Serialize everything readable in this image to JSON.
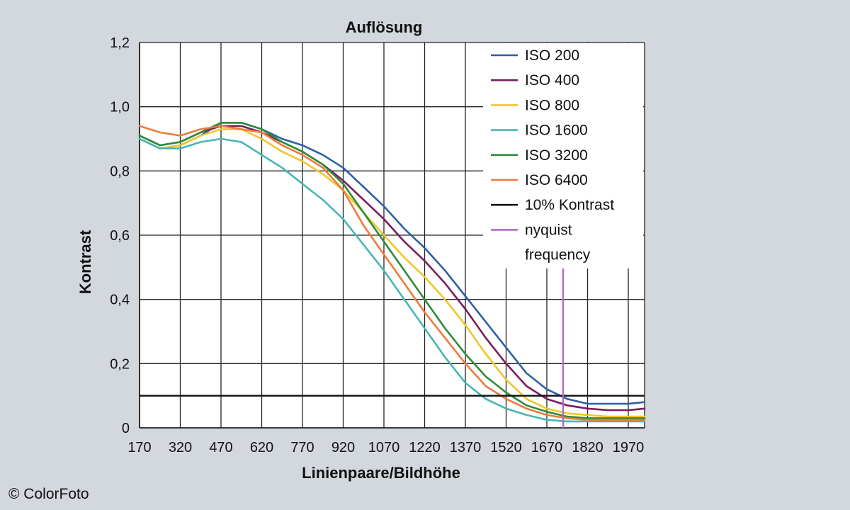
{
  "copyright": "© ColorFoto",
  "chart_data": {
    "type": "line",
    "title": "Auflösung",
    "xlabel": "Linienpaare/Bildhöhe",
    "ylabel": "Kontrast",
    "xlim": [
      170,
      2030
    ],
    "ylim": [
      0,
      1.2
    ],
    "x_ticks": [
      170,
      320,
      470,
      620,
      770,
      920,
      1070,
      1220,
      1370,
      1520,
      1670,
      1820,
      1970
    ],
    "y_ticks": [
      {
        "value": 0,
        "label": "0"
      },
      {
        "value": 0.2,
        "label": "0,2"
      },
      {
        "value": 0.4,
        "label": "0,4"
      },
      {
        "value": 0.6,
        "label": "0,6"
      },
      {
        "value": 0.8,
        "label": "0,8"
      },
      {
        "value": 1.0,
        "label": "1,0"
      },
      {
        "value": 1.2,
        "label": "1,2"
      }
    ],
    "grid": true,
    "legend_position": "top-right",
    "x": [
      170,
      245,
      320,
      395,
      470,
      545,
      620,
      695,
      770,
      845,
      920,
      995,
      1070,
      1145,
      1220,
      1295,
      1370,
      1445,
      1520,
      1595,
      1670,
      1745,
      1820,
      1895,
      1970,
      2030
    ],
    "series": [
      {
        "name": "ISO 200",
        "color": "#2f5fa8",
        "values": [
          0.9,
          0.87,
          0.88,
          0.91,
          0.95,
          0.95,
          0.93,
          0.9,
          0.88,
          0.85,
          0.81,
          0.75,
          0.69,
          0.62,
          0.56,
          0.49,
          0.41,
          0.33,
          0.25,
          0.17,
          0.12,
          0.09,
          0.075,
          0.075,
          0.075,
          0.08
        ]
      },
      {
        "name": "ISO 400",
        "color": "#7b1c5e",
        "values": [
          0.91,
          0.88,
          0.89,
          0.92,
          0.94,
          0.94,
          0.92,
          0.89,
          0.86,
          0.82,
          0.77,
          0.71,
          0.65,
          0.58,
          0.52,
          0.45,
          0.37,
          0.28,
          0.2,
          0.13,
          0.09,
          0.07,
          0.06,
          0.055,
          0.055,
          0.06
        ]
      },
      {
        "name": "ISO 800",
        "color": "#f0c62a",
        "values": [
          0.9,
          0.87,
          0.88,
          0.91,
          0.93,
          0.93,
          0.9,
          0.86,
          0.83,
          0.79,
          0.74,
          0.67,
          0.6,
          0.53,
          0.47,
          0.4,
          0.32,
          0.23,
          0.15,
          0.09,
          0.06,
          0.045,
          0.04,
          0.035,
          0.035,
          0.035
        ]
      },
      {
        "name": "ISO 1600",
        "color": "#45b7b4",
        "values": [
          0.9,
          0.87,
          0.87,
          0.89,
          0.9,
          0.89,
          0.85,
          0.81,
          0.76,
          0.71,
          0.65,
          0.57,
          0.49,
          0.4,
          0.31,
          0.22,
          0.14,
          0.09,
          0.06,
          0.04,
          0.025,
          0.02,
          0.02,
          0.02,
          0.02,
          0.02
        ]
      },
      {
        "name": "ISO 3200",
        "color": "#2e8b3a",
        "values": [
          0.91,
          0.88,
          0.89,
          0.92,
          0.95,
          0.95,
          0.93,
          0.89,
          0.86,
          0.82,
          0.76,
          0.67,
          0.58,
          0.49,
          0.4,
          0.31,
          0.23,
          0.16,
          0.11,
          0.07,
          0.05,
          0.035,
          0.03,
          0.03,
          0.03,
          0.03
        ]
      },
      {
        "name": "ISO 6400",
        "color": "#ef7a3a",
        "values": [
          0.94,
          0.92,
          0.91,
          0.93,
          0.94,
          0.93,
          0.92,
          0.88,
          0.85,
          0.81,
          0.74,
          0.63,
          0.54,
          0.45,
          0.36,
          0.28,
          0.2,
          0.13,
          0.09,
          0.06,
          0.04,
          0.03,
          0.025,
          0.025,
          0.025,
          0.025
        ]
      }
    ],
    "reference_lines": [
      {
        "name": "10% Kontrast",
        "color": "#111111",
        "orientation": "horizontal",
        "value": 0.1
      },
      {
        "name": "nyquist frequency",
        "name_lines": [
          "nyquist",
          "frequency"
        ],
        "color": "#b267c4",
        "orientation": "vertical",
        "value": 1730
      }
    ]
  }
}
